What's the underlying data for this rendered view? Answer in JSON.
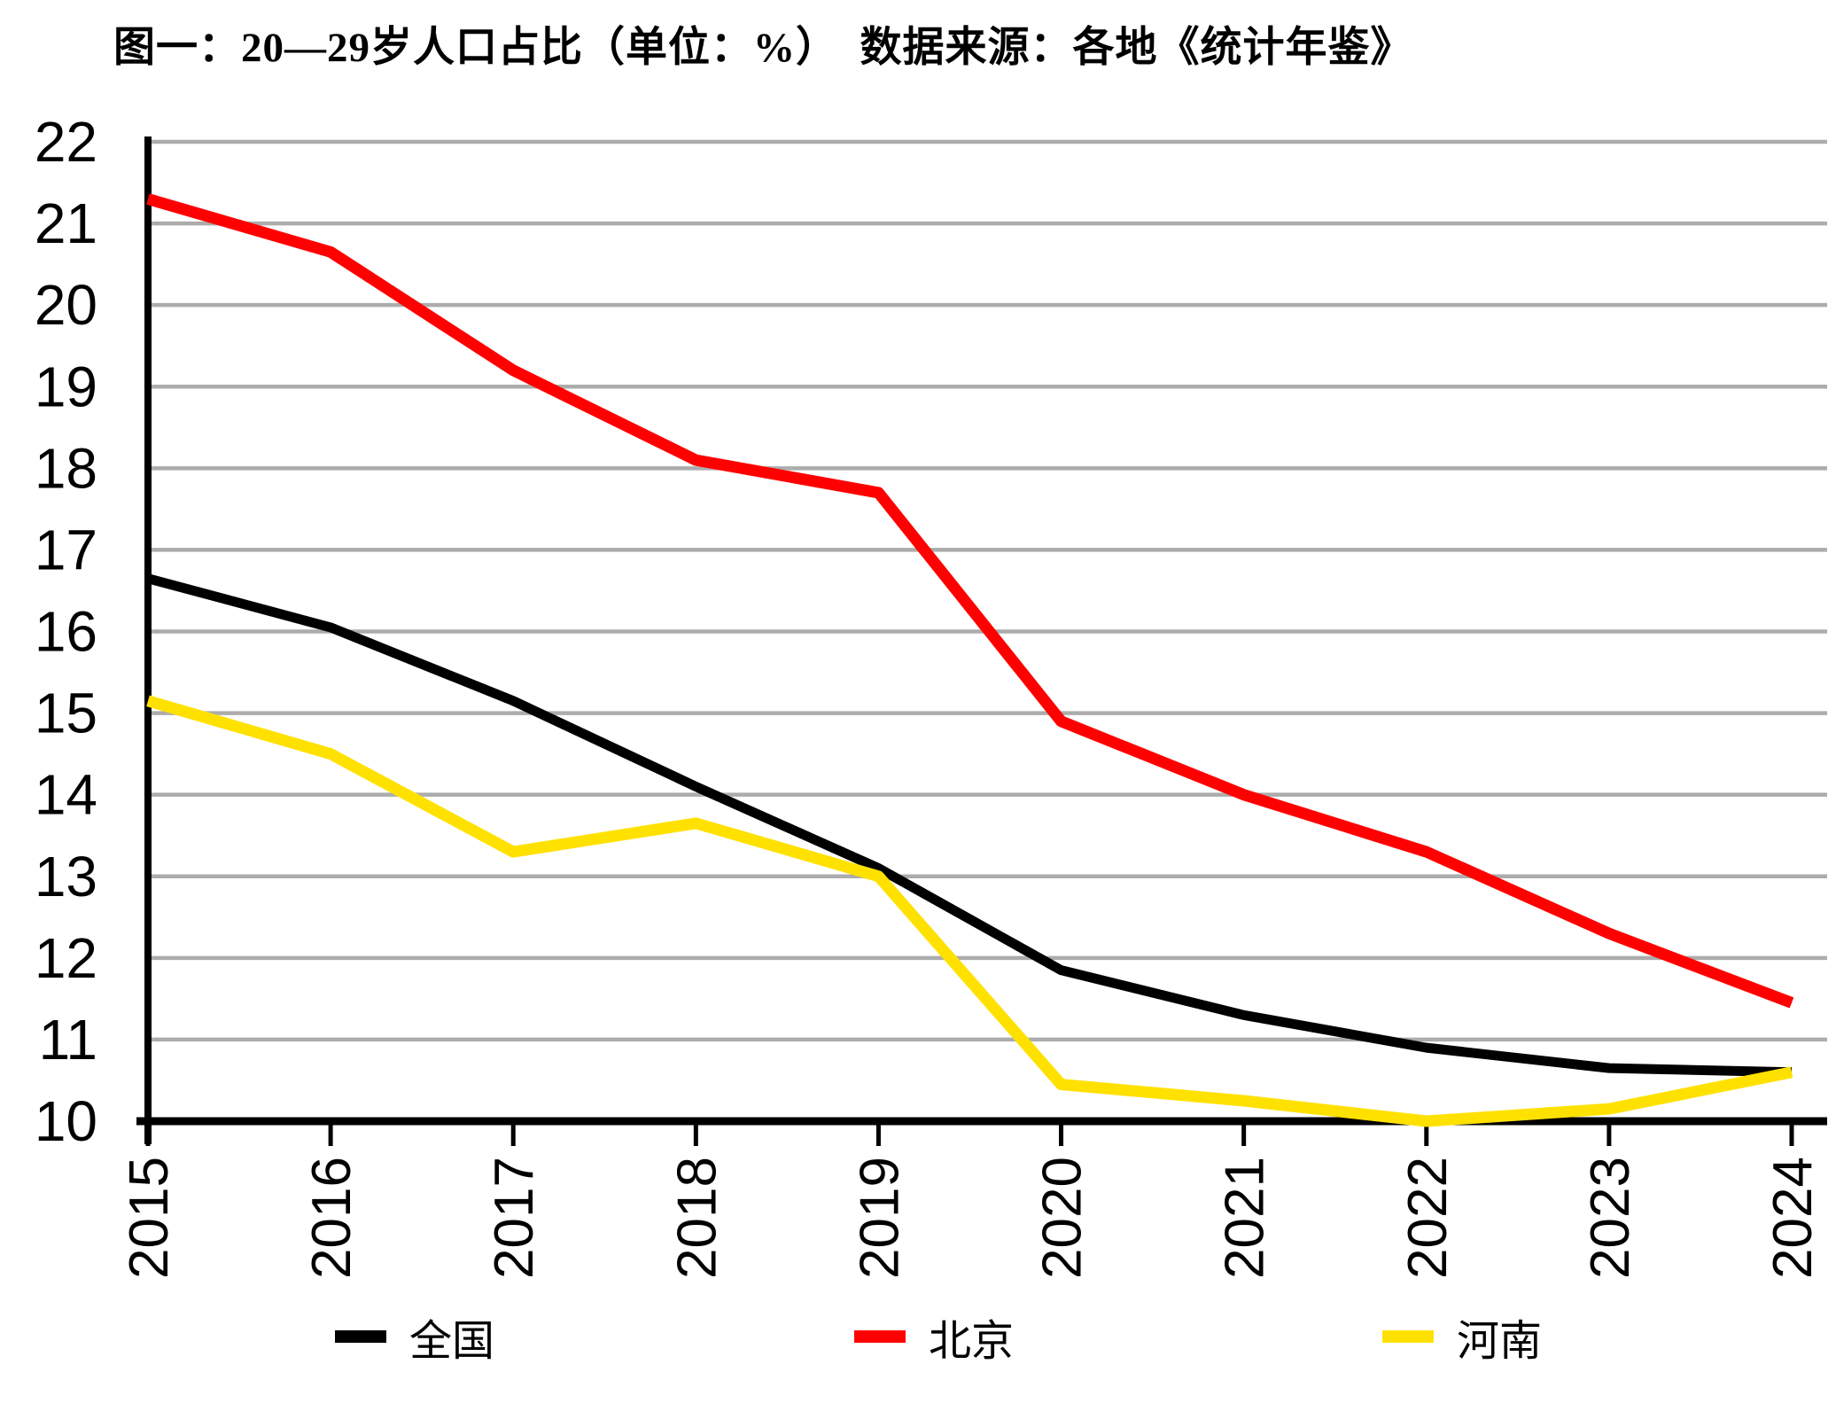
{
  "title": "图一：20—29岁人口占比（单位：%）　数据来源：各地《统计年鉴》",
  "chart_data": {
    "type": "line",
    "x": [
      2015,
      2016,
      2017,
      2018,
      2019,
      2020,
      2021,
      2022,
      2023,
      2024
    ],
    "series": [
      {
        "name": "全国",
        "color": "#000000",
        "stroke_width": 11,
        "values": [
          16.65,
          16.05,
          15.15,
          14.1,
          13.1,
          11.85,
          11.3,
          10.9,
          10.65,
          10.6
        ]
      },
      {
        "name": "北京",
        "color": "#FF0000",
        "stroke_width": 13,
        "values": [
          21.3,
          20.65,
          19.2,
          18.1,
          17.7,
          14.9,
          14.0,
          13.3,
          12.3,
          11.45
        ]
      },
      {
        "name": "河南",
        "color": "#FFE100",
        "stroke_width": 13,
        "values": [
          15.15,
          14.5,
          13.3,
          13.65,
          13.0,
          10.45,
          10.25,
          10.0,
          10.15,
          10.6
        ]
      }
    ],
    "ylim": [
      10,
      22
    ],
    "ytick_step": 1,
    "y_tick_labels": [
      "10",
      "11",
      "12",
      "13",
      "14",
      "15",
      "16",
      "17",
      "18",
      "19",
      "20",
      "21",
      "22"
    ],
    "x_tick_labels": [
      "2015",
      "2016",
      "2017",
      "2018",
      "2019",
      "2020",
      "2021",
      "2022",
      "2023",
      "2024"
    ],
    "grid": "horizontal",
    "gridline_color": "#ACACAC",
    "axis_color": "#000000",
    "legend_position": "bottom",
    "x_label_rotation": -90
  }
}
